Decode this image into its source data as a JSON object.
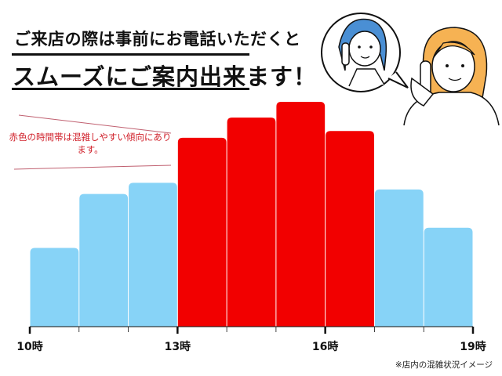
{
  "header": {
    "line1": "ご来店の際は事前にお電話いただくと",
    "line2": "スムーズにご案内出来ます！"
  },
  "annotation": "赤色の時間帯は混雑しやすい傾向にあります。",
  "footnote": "※店内の混雑状況イメージ",
  "colors": {
    "normal": "#87d3f7",
    "busy": "#f20000",
    "note": "#d0202a"
  },
  "chart_data": {
    "type": "bar",
    "title": "",
    "xlabel": "",
    "ylabel": "",
    "x_ticks": [
      "10時",
      "13時",
      "16時",
      "19時"
    ],
    "values": [
      35,
      59,
      64,
      84,
      93,
      100,
      87,
      61,
      44
    ],
    "busy": [
      false,
      false,
      false,
      true,
      true,
      true,
      true,
      false,
      false
    ],
    "ylim": [
      0,
      100
    ],
    "grid": false
  }
}
